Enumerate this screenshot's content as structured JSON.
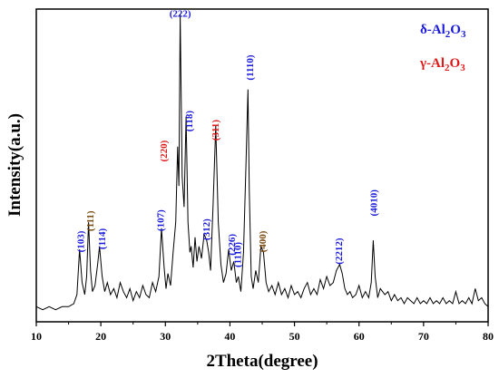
{
  "chart_data": {
    "type": "line",
    "xlabel": "2Theta(degree)",
    "ylabel": "Intensity(a.u.)",
    "xlim": [
      10,
      80
    ],
    "ylim": [
      0,
      1
    ],
    "x_ticks": [
      "10",
      "20",
      "30",
      "40",
      "50",
      "60",
      "70",
      "80"
    ],
    "y_ticks_visible": false,
    "legend": [
      {
        "prefix": "δ-Al",
        "sub1": "2",
        "mid": "O",
        "sub2": "3",
        "color": "#1a1adc"
      },
      {
        "prefix": "γ-Al",
        "sub1": "2",
        "mid": "O",
        "sub2": "3",
        "color": "#e01a1a"
      }
    ],
    "peak_labels": [
      {
        "text": "(103)",
        "x": 16.8,
        "y": 0.2,
        "color": "#1a1adc"
      },
      {
        "text": "(111)",
        "x": 18.3,
        "y": 0.27,
        "color": "#7a4a10"
      },
      {
        "text": "(114)",
        "x": 20.1,
        "y": 0.21,
        "color": "#1a1adc"
      },
      {
        "text": "(107)",
        "x": 29.2,
        "y": 0.27,
        "color": "#1a1adc"
      },
      {
        "text": "(220)",
        "x": 29.7,
        "y": 0.5,
        "color": "#e01a1a"
      },
      {
        "text": "(222)",
        "x": 32.3,
        "y": 0.98,
        "color": "#1a1adc"
      },
      {
        "text": "(118)",
        "x": 33.6,
        "y": 0.6,
        "color": "#1a1adc"
      },
      {
        "text": "(311)",
        "x": 37.7,
        "y": 0.57,
        "color": "#e01a1a"
      },
      {
        "text": "(312)",
        "x": 36.3,
        "y": 0.24,
        "color": "#1a1adc"
      },
      {
        "text": "(226)",
        "x": 40.2,
        "y": 0.19,
        "color": "#1a1adc"
      },
      {
        "text": "(1110)",
        "x": 41.1,
        "y": 0.15,
        "color": "#1a1adc"
      },
      {
        "text": "(1110)",
        "x": 43.0,
        "y": 0.77,
        "color": "#1a1adc"
      },
      {
        "text": "(400)",
        "x": 45.0,
        "y": 0.2,
        "color": "#7a4a10"
      },
      {
        "text": "(2212)",
        "x": 56.8,
        "y": 0.16,
        "color": "#1a1adc"
      },
      {
        "text": "(4010)",
        "x": 62.2,
        "y": 0.32,
        "color": "#1a1adc"
      }
    ],
    "series": [
      {
        "x": [
          10.0,
          11.0,
          12.0,
          13.0,
          14.0,
          15.0,
          15.8,
          16.3,
          16.7,
          17.1,
          17.5,
          17.8,
          18.1,
          18.4,
          18.7,
          19.1,
          19.5,
          19.8,
          20.2,
          20.6,
          21.0,
          21.5,
          22.0,
          22.5,
          23.0,
          23.5,
          24.0,
          24.5,
          25.0,
          25.5,
          26.0,
          26.5,
          27.0,
          27.5,
          28.0,
          28.5,
          29.0,
          29.4,
          29.8,
          30.1,
          30.4,
          30.8,
          31.2,
          31.6,
          31.9,
          32.1,
          32.3,
          32.6,
          32.9,
          33.2,
          33.5,
          33.8,
          34.0,
          34.3,
          34.6,
          34.9,
          35.2,
          35.6,
          36.0,
          36.4,
          36.7,
          37.0,
          37.4,
          37.8,
          38.2,
          38.6,
          39.0,
          39.4,
          39.8,
          40.2,
          40.6,
          41.0,
          41.3,
          41.7,
          42.1,
          42.5,
          42.8,
          43.0,
          43.3,
          43.6,
          44.0,
          44.4,
          44.8,
          45.2,
          45.6,
          46.0,
          46.5,
          47.0,
          47.5,
          48.0,
          48.5,
          49.0,
          49.5,
          50.0,
          50.5,
          51.0,
          51.5,
          52.0,
          52.5,
          53.0,
          53.5,
          54.0,
          54.5,
          55.0,
          55.5,
          56.0,
          56.5,
          57.0,
          57.4,
          57.8,
          58.2,
          58.6,
          59.0,
          59.5,
          60.0,
          60.5,
          61.0,
          61.5,
          61.9,
          62.2,
          62.5,
          62.9,
          63.3,
          64.0,
          64.5,
          65.0,
          65.5,
          66.0,
          66.5,
          67.0,
          67.5,
          68.0,
          68.5,
          69.0,
          69.5,
          70.0,
          70.5,
          71.0,
          71.5,
          72.0,
          72.5,
          73.0,
          73.5,
          74.0,
          74.5,
          75.0,
          75.5,
          76.0,
          76.5,
          77.0,
          77.5,
          78.0,
          78.5,
          79.0,
          79.5,
          80.0
        ],
        "y": [
          0.02,
          0.01,
          0.02,
          0.01,
          0.02,
          0.02,
          0.03,
          0.06,
          0.21,
          0.1,
          0.06,
          0.12,
          0.3,
          0.14,
          0.07,
          0.09,
          0.16,
          0.22,
          0.12,
          0.07,
          0.1,
          0.06,
          0.08,
          0.05,
          0.1,
          0.07,
          0.05,
          0.08,
          0.04,
          0.07,
          0.05,
          0.09,
          0.06,
          0.05,
          0.1,
          0.07,
          0.12,
          0.28,
          0.15,
          0.08,
          0.13,
          0.09,
          0.2,
          0.3,
          0.55,
          0.42,
          0.99,
          0.45,
          0.35,
          0.65,
          0.3,
          0.2,
          0.22,
          0.15,
          0.25,
          0.17,
          0.22,
          0.18,
          0.26,
          0.24,
          0.2,
          0.14,
          0.36,
          0.62,
          0.3,
          0.16,
          0.1,
          0.13,
          0.21,
          0.14,
          0.17,
          0.1,
          0.12,
          0.07,
          0.2,
          0.5,
          0.74,
          0.4,
          0.12,
          0.08,
          0.14,
          0.1,
          0.22,
          0.2,
          0.1,
          0.07,
          0.09,
          0.06,
          0.1,
          0.06,
          0.08,
          0.05,
          0.09,
          0.06,
          0.07,
          0.05,
          0.08,
          0.1,
          0.06,
          0.08,
          0.06,
          0.11,
          0.08,
          0.12,
          0.09,
          0.1,
          0.14,
          0.16,
          0.13,
          0.08,
          0.06,
          0.07,
          0.05,
          0.06,
          0.09,
          0.05,
          0.07,
          0.05,
          0.1,
          0.24,
          0.12,
          0.05,
          0.08,
          0.06,
          0.07,
          0.04,
          0.06,
          0.04,
          0.05,
          0.03,
          0.05,
          0.04,
          0.03,
          0.05,
          0.03,
          0.04,
          0.03,
          0.05,
          0.03,
          0.04,
          0.03,
          0.05,
          0.03,
          0.04,
          0.03,
          0.07,
          0.03,
          0.04,
          0.03,
          0.05,
          0.03,
          0.08,
          0.04,
          0.05,
          0.03,
          0.02
        ]
      }
    ]
  }
}
